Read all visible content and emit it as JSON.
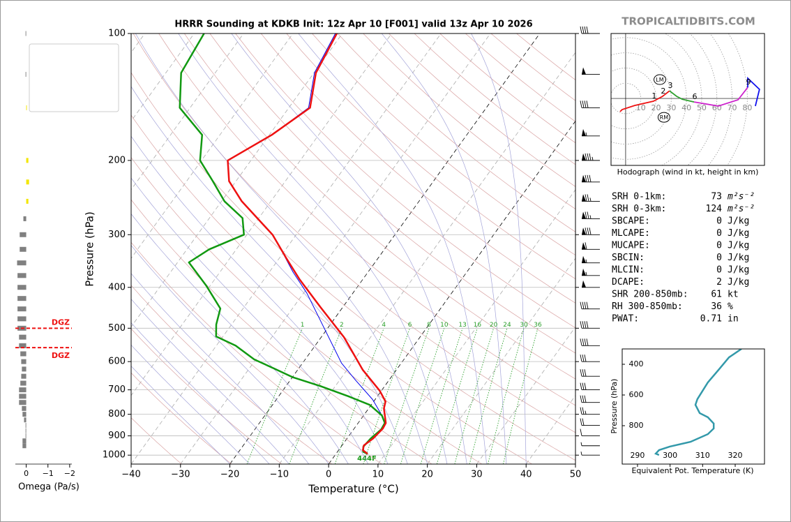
{
  "brand": "TROPICALTIDBITS.COM",
  "chart_data": [
    {
      "type": "skewt",
      "title": "HRRR Sounding at KDKB Init: 12z Apr 10 [F001] valid 13z Apr 10 2026",
      "xlabel": "Temperature (°C)",
      "ylabel": "Pressure (hPa)",
      "xlim": [
        -40,
        50
      ],
      "ylim": [
        1050,
        100
      ],
      "log_y": true,
      "xticks": [
        {
          "value": -40,
          "label": "−40"
        },
        {
          "value": -30,
          "label": "−30"
        },
        {
          "value": -20,
          "label": "−20"
        },
        {
          "value": -10,
          "label": "−10"
        },
        0,
        10,
        20,
        30,
        40,
        50
      ],
      "yticks": [
        100,
        200,
        300,
        400,
        500,
        600,
        700,
        800,
        900,
        1000
      ],
      "grid": true,
      "reference_lines": [
        {
          "name": "Sat. Mix. Ratio",
          "color": "#2ca02c",
          "values": [
            1,
            2,
            4,
            6,
            8,
            10,
            13,
            16,
            20,
            24,
            30,
            36
          ]
        },
        {
          "name": "Dry Adiabats",
          "color": "#d9a3a3"
        },
        {
          "name": "Pseudoadiabats",
          "color": "#a3a3d9"
        }
      ],
      "series": [
        {
          "name": "Wetbulb",
          "color": "#0000ee",
          "pressure": [
            100,
            124,
            150,
            174,
            200,
            224,
            250,
            300,
            329,
            368,
            413,
            500,
            605,
            665,
            738,
            805,
            839,
            869,
            913,
            955,
            982,
            993
          ],
          "values": [
            -61.4,
            -59.9,
            -56.0,
            -59.5,
            -64.7,
            -61.4,
            -55.9,
            -44.8,
            -40.4,
            -35.2,
            -29.3,
            -20.7,
            -12.1,
            -6.7,
            -0.5,
            3.7,
            5.4,
            5.6,
            4.8,
            4.5,
            5.2,
            6.4
          ]
        },
        {
          "name": "Dewpoint",
          "color": "#119911",
          "pressure": [
            100,
            124,
            150,
            174,
            200,
            224,
            250,
            274,
            300,
            325,
            349,
            397,
            449,
            490,
            523,
            550,
            593,
            623,
            653,
            686,
            725,
            760,
            805,
            839,
            869,
            913,
            955,
            982,
            993
          ],
          "values": [
            -88.0,
            -86.9,
            -82.1,
            -73.6,
            -70.3,
            -64.7,
            -59.4,
            -53.3,
            -50.6,
            -55.5,
            -57.7,
            -50.7,
            -44.6,
            -43.1,
            -41.4,
            -36.1,
            -30.3,
            -25.0,
            -20.0,
            -13.0,
            -5.9,
            -0.3,
            3.7,
            5.4,
            5.6,
            4.8,
            4.5,
            5.2,
            6.4
          ]
        },
        {
          "name": "Temperature",
          "color": "#ee1111",
          "pressure": [
            100,
            124,
            150,
            174,
            200,
            224,
            250,
            300,
            341,
            383,
            446,
            525,
            628,
            704,
            746,
            775,
            839,
            865,
            913,
            948,
            973,
            993
          ],
          "values": [
            -61.1,
            -59.6,
            -55.7,
            -59.5,
            -64.7,
            -61.4,
            -55.9,
            -44.8,
            -38.6,
            -32.8,
            -24.5,
            -15.4,
            -6.8,
            -0.3,
            2.4,
            3.1,
            5.6,
            5.8,
            5.3,
            4.4,
            4.9,
            6.4
          ]
        }
      ],
      "annotation": "444F",
      "winds": {
        "pressure": [
          100,
          125,
          150,
          175,
          200,
          225,
          250,
          275,
          300,
          325,
          350,
          375,
          400,
          450,
          500,
          550,
          600,
          650,
          700,
          750,
          800,
          850,
          900,
          950,
          1000
        ],
        "speed": [
          40,
          50,
          40,
          55,
          85,
          80,
          75,
          75,
          80,
          60,
          55,
          55,
          50,
          40,
          40,
          40,
          30,
          30,
          30,
          30,
          25,
          20,
          10,
          5,
          5
        ]
      }
    },
    {
      "type": "bar",
      "orientation": "horizontal",
      "xlabel": "Omega (Pa/s)",
      "xlim": [
        0.5,
        -2.1
      ],
      "ylim": [
        1050,
        100
      ],
      "log_y": true,
      "xticks": [
        0,
        {
          "value": -1,
          "label": "−1"
        },
        {
          "value": -2,
          "label": "−2"
        }
      ],
      "color": "#808080",
      "negative_color": "#f2e600",
      "pressure": [
        100,
        125,
        150,
        200,
        225,
        250,
        275,
        300,
        325,
        350,
        375,
        400,
        425,
        450,
        475,
        500,
        525,
        550,
        575,
        600,
        625,
        650,
        675,
        700,
        725,
        750,
        775,
        800,
        825,
        850,
        875,
        900,
        925,
        950
      ],
      "values": [
        0.03,
        0.03,
        -0.03,
        -0.1,
        -0.13,
        -0.1,
        0.13,
        0.3,
        0.3,
        0.42,
        0.4,
        0.4,
        0.4,
        0.4,
        0.4,
        0.4,
        0.33,
        0.33,
        0.27,
        0.23,
        0.2,
        0.23,
        0.27,
        0.33,
        0.33,
        0.33,
        0.2,
        0.17,
        0.1,
        0.03,
        0.03,
        0.03,
        0.17,
        0.17
      ],
      "dgz_color": "#ee1111",
      "dgz": [
        {
          "pressure": 500,
          "label": "DGZ"
        },
        {
          "pressure": 556,
          "label": "DGZ"
        }
      ]
    },
    {
      "type": "hodograph",
      "caption": "Hodograph (wind in kt, height in km)",
      "xlim": [
        -9.6,
        91.3
      ],
      "ylim": [
        -44,
        42.7
      ],
      "rings": [
        10,
        20,
        30,
        40,
        50,
        60,
        70,
        80
      ],
      "series": [
        {
          "color": "#ee1111",
          "u": [
            -3.7,
            -2.3,
            6.0,
            18.3,
            24.3,
            28.9
          ],
          "v": [
            -8.7,
            -7.3,
            -4.6,
            -1.8,
            1.4,
            5.0
          ]
        },
        {
          "color": "#2ca02c",
          "u": [
            28.9,
            33.5,
            37.2,
            45.0
          ],
          "v": [
            5.0,
            1.4,
            -0.5,
            -2.3
          ]
        },
        {
          "color": "#cc22cc",
          "u": [
            45.0,
            61.0,
            73.9,
            80.3
          ],
          "v": [
            -2.3,
            -5.0,
            -0.9,
            7.3
          ]
        },
        {
          "color": "#1111ee",
          "u": [
            80.3,
            80.3,
            88.0,
            85.3
          ],
          "v": [
            7.3,
            13.3,
            6.0,
            -5.0
          ]
        }
      ],
      "heights": [
        {
          "height": 1,
          "u": 18.3,
          "v": -1.8
        },
        {
          "height": 2,
          "u": 24.3,
          "v": 1.4
        },
        {
          "height": 3,
          "u": 28.9,
          "v": 5.0
        },
        {
          "height": 6,
          "u": 45.0,
          "v": -2.3
        },
        {
          "height": 9,
          "u": 80.3,
          "v": 7.3
        }
      ],
      "markers": [
        {
          "label": "LM",
          "u": 22.5,
          "v": 12.4
        },
        {
          "label": "RM",
          "u": 25.2,
          "v": -12.4
        }
      ]
    },
    {
      "type": "line",
      "xlabel": "Equivalent Pot. Temperature (K)",
      "ylabel": "Pressure (hPa)",
      "xlim": [
        285.3,
        329
      ],
      "ylim": [
        1050,
        300
      ],
      "xticks": [
        290,
        300,
        310,
        320
      ],
      "yticks": [
        400,
        600,
        800
      ],
      "color": "#3399aa",
      "pressure": [
        300,
        355,
        436,
        518,
        627,
        664,
        718,
        745,
        786,
        818,
        855,
        905,
        936,
        959,
        982,
        991
      ],
      "values": [
        321.9,
        318.1,
        314.9,
        311.6,
        308.4,
        307.8,
        309.1,
        311.6,
        313.4,
        313.4,
        311.6,
        306.3,
        299.9,
        296.6,
        295.6,
        296.6
      ]
    }
  ],
  "indices": [
    {
      "label": "SRH 0-1km:",
      "value": 73,
      "unit": "m²s⁻²",
      "color": "#000000"
    },
    {
      "label": "SRH 0-3km:",
      "value": 124,
      "unit": "m²s⁻²",
      "color": "#000000"
    },
    {
      "label": "SBCAPE:",
      "value": 0,
      "unit": "J/kg",
      "color": "#000000"
    },
    {
      "label": "MLCAPE:",
      "value": 0,
      "unit": "J/kg",
      "color": "#000000"
    },
    {
      "label": "MUCAPE:",
      "value": 0,
      "unit": "J/kg",
      "color": "#000000"
    },
    {
      "label": "SBCIN:",
      "value": 0,
      "unit": "J/kg",
      "color": "#000000"
    },
    {
      "label": "MLCIN:",
      "value": 0,
      "unit": "J/kg",
      "color": "#000000"
    },
    {
      "label": "DCAPE:",
      "value": 2,
      "unit": "J/kg",
      "color": "#2222cc"
    },
    {
      "label": "SHR 200-850mb:",
      "value": 61,
      "unit": "kt",
      "color": "#a52a2a"
    },
    {
      "label": "RH 300-850mb:",
      "value": 36,
      "unit": "%",
      "color": "#8b5a00"
    },
    {
      "label": "PWAT:",
      "value": 0.71,
      "unit": "in",
      "color": "#000000"
    }
  ]
}
